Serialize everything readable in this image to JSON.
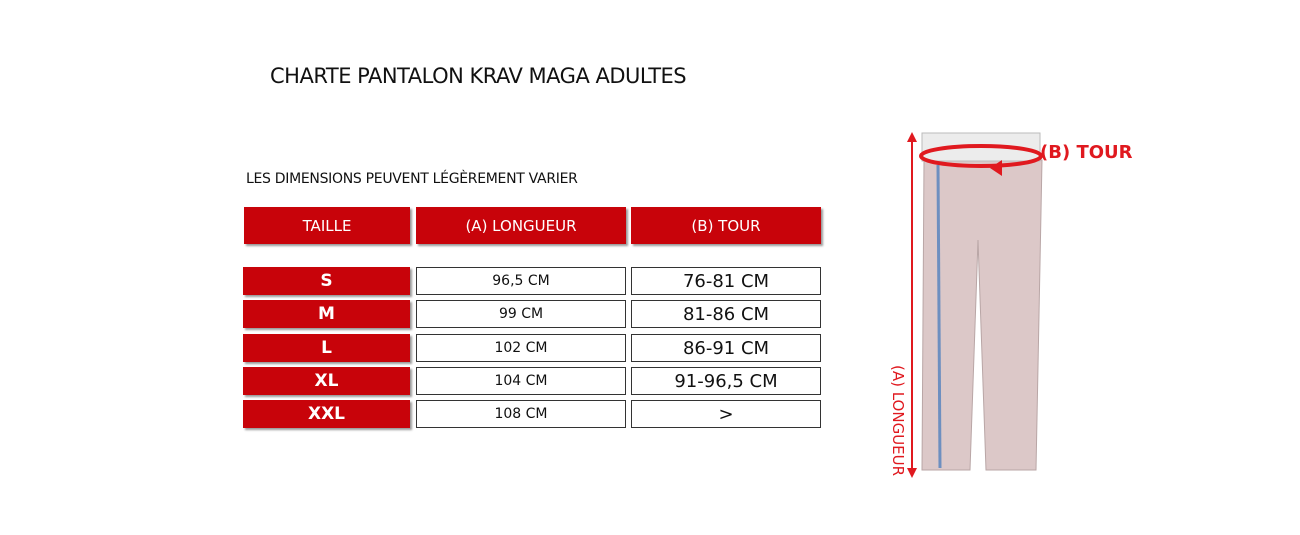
{
  "title": "CHARTE PANTALON KRAV MAGA ADULTES",
  "subtitle": "LES DIMENSIONS PEUVENT LÉGÈREMENT VARIER",
  "table": {
    "header": [
      "TAILLE",
      "(A) LONGUEUR",
      "(B) TOUR"
    ],
    "rows": [
      [
        "S",
        "96,5 CM",
        "76-81 CM"
      ],
      [
        "M",
        "99 CM",
        "81-86 CM"
      ],
      [
        "L",
        "102 CM",
        "86-91 CM"
      ],
      [
        "XL",
        "104 CM",
        "91-96,5 CM"
      ],
      [
        "XXL",
        "108 CM",
        ">"
      ]
    ]
  },
  "diagram": {
    "waist_label": "(B) TOUR",
    "length_label": "(A) LONGUEUR"
  }
}
